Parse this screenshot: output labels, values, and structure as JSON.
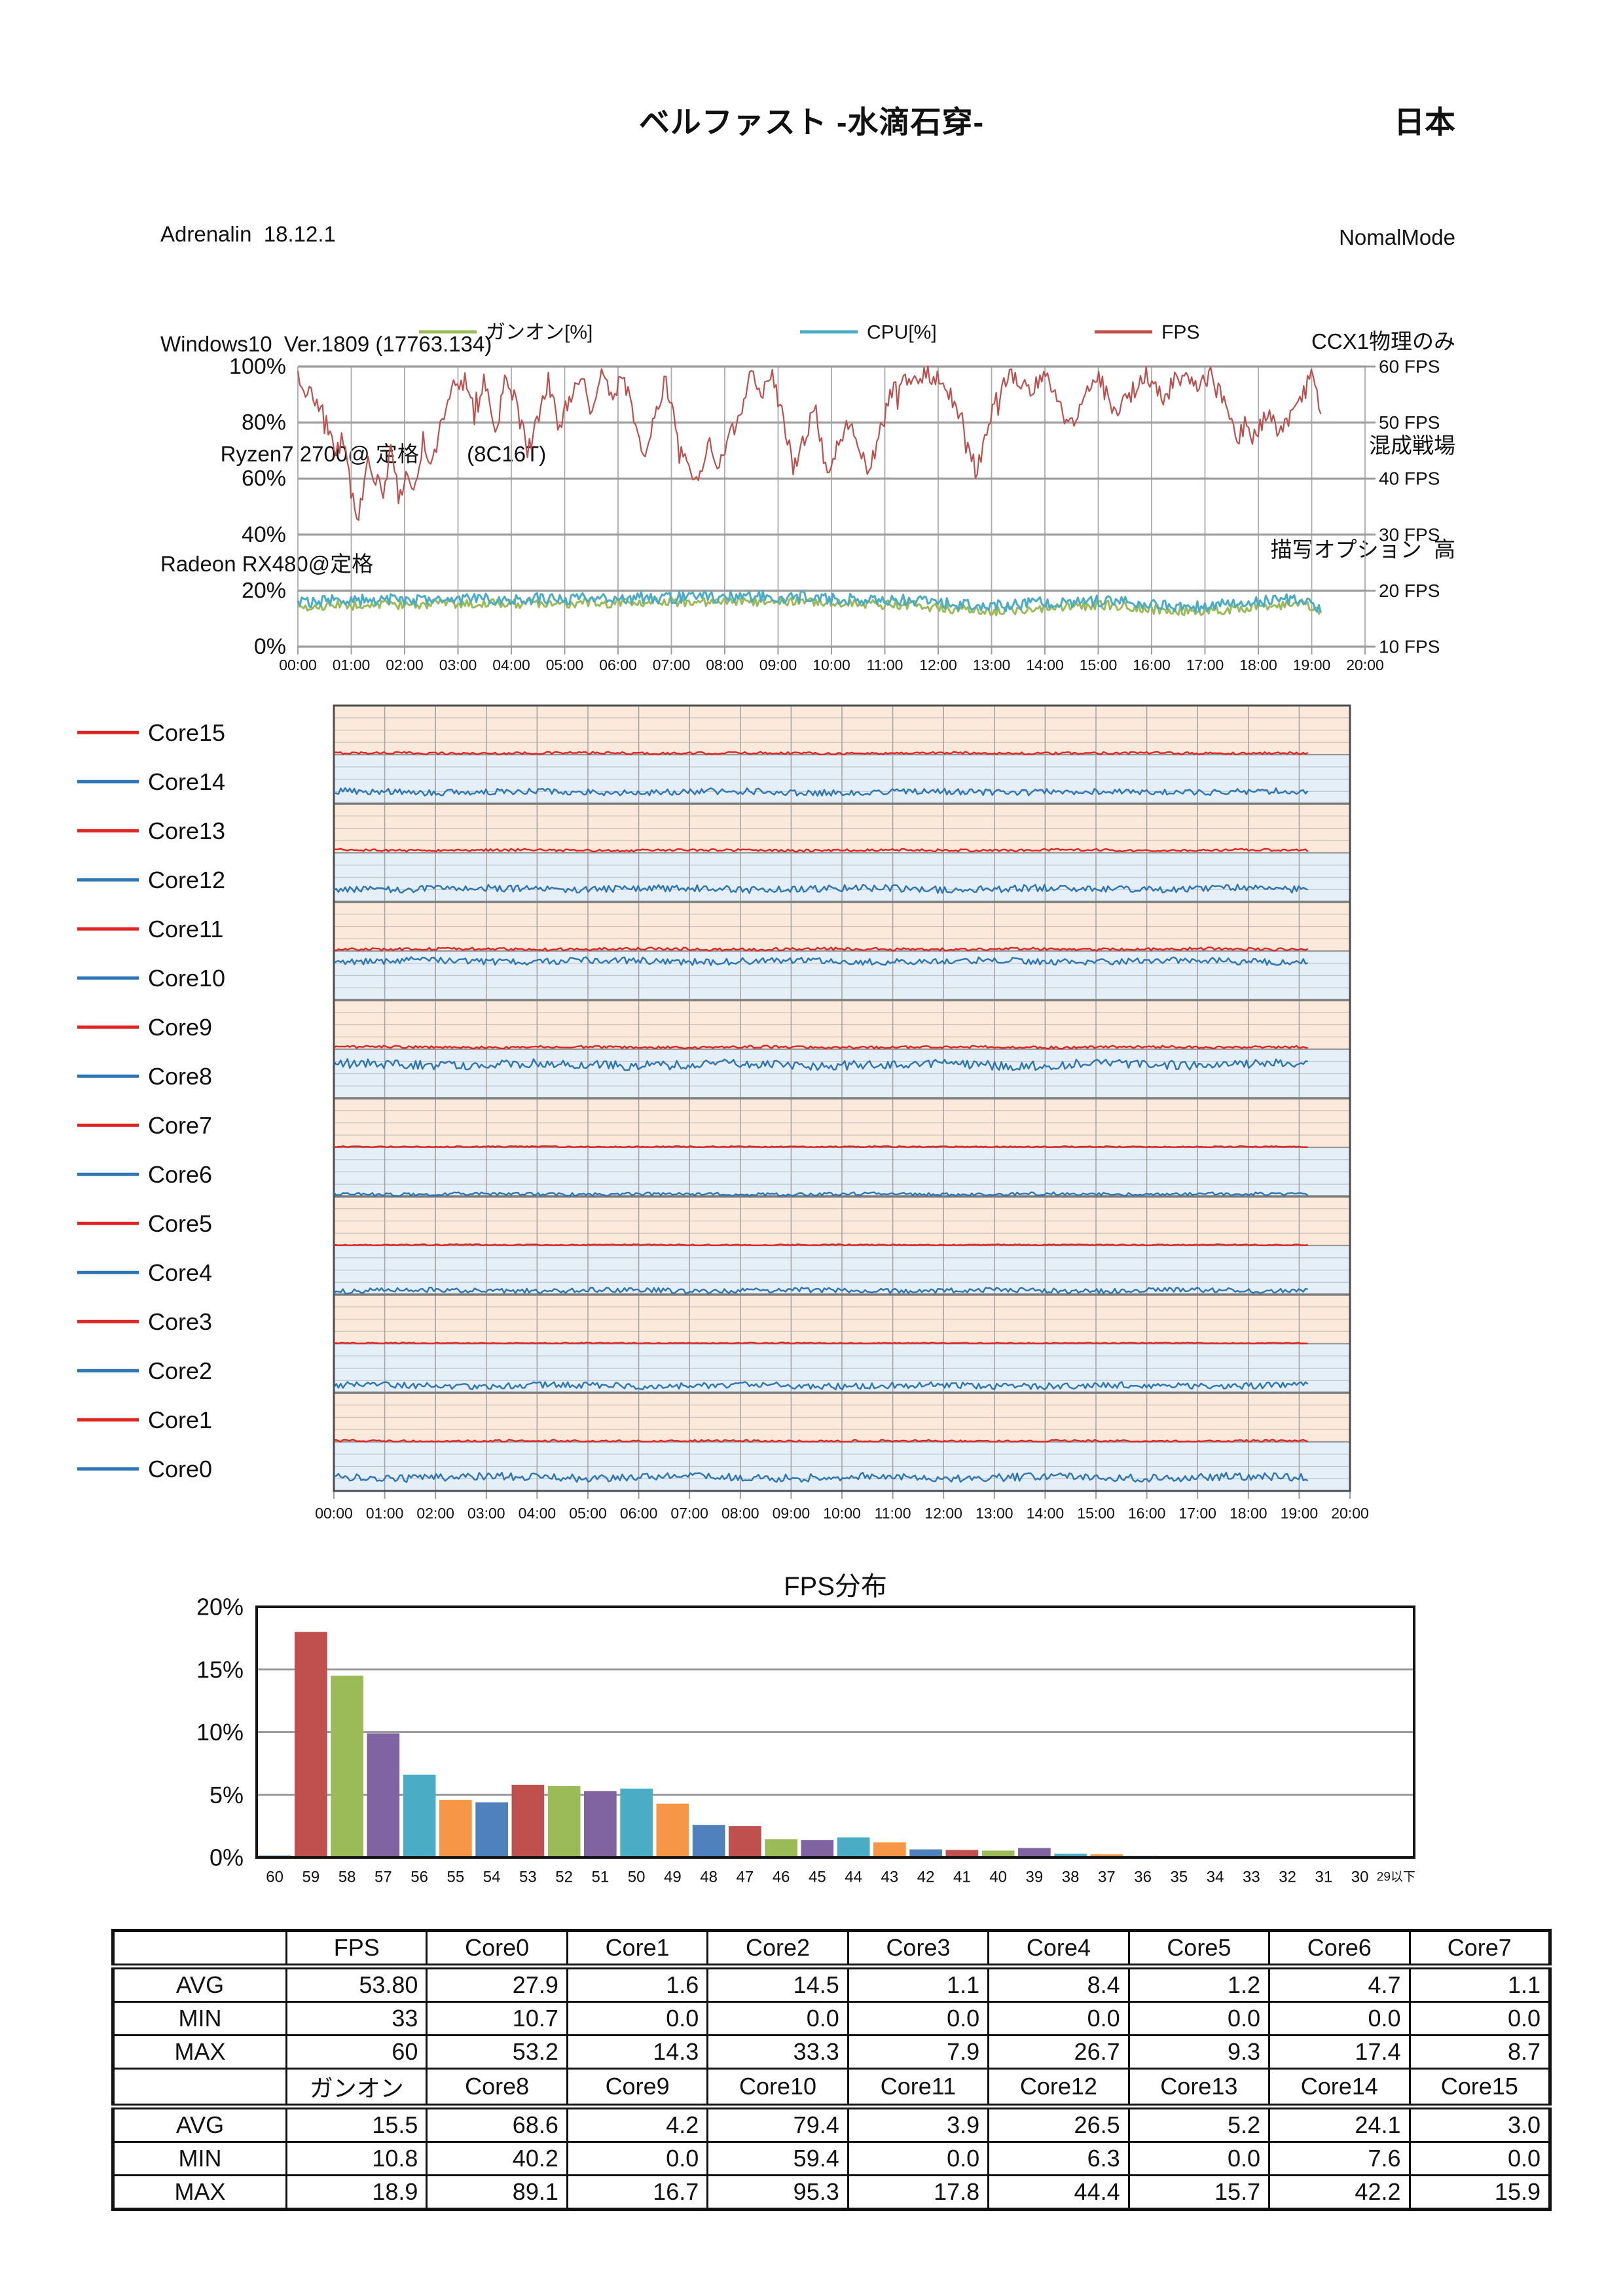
{
  "header": {
    "title": "ベルファスト -水滴石穿-",
    "region": "日本",
    "info_left": [
      "Adrenalin  18.12.1",
      "Windows10  Ver.1809 (17763.134)",
      "          Ryzen7 2700@ 定格        (8C16T)",
      "Radeon RX480@定格"
    ],
    "info_right": [
      "NomalMode",
      "CCX1物理のみ",
      "混成戦場",
      "描写オプション  高"
    ]
  },
  "chart_data": [
    {
      "type": "line",
      "name": "usage-and-fps-over-time",
      "legend": [
        {
          "label": "ガンオン[%]",
          "color": "#9BBB59"
        },
        {
          "label": "CPU[%]",
          "color": "#4BACC6"
        },
        {
          "label": "FPS",
          "color": "#C0504D"
        }
      ],
      "x_ticks": [
        "00:00",
        "01:00",
        "02:00",
        "03:00",
        "04:00",
        "05:00",
        "06:00",
        "07:00",
        "08:00",
        "09:00",
        "10:00",
        "11:00",
        "12:00",
        "13:00",
        "14:00",
        "15:00",
        "16:00",
        "17:00",
        "18:00",
        "19:00",
        "20:00"
      ],
      "y_left": {
        "ticks": [
          "100%",
          "80%",
          "60%",
          "40%",
          "20%",
          "0%"
        ],
        "min": 0,
        "max": 100
      },
      "y_right": {
        "ticks": [
          "60 FPS",
          "50 FPS",
          "40 FPS",
          "30 FPS",
          "20 FPS",
          "10 FPS"
        ],
        "min": 10,
        "max": 60
      },
      "x_range_hours": [
        0,
        20
      ],
      "data_end_hour": 19.17,
      "grid": true,
      "series": [
        {
          "name": "ガンオン[%]",
          "color": "#9BBB59",
          "avg": 15.5,
          "min": 10.8,
          "max": 18.9,
          "noise": 3.4,
          "offset": -1.7
        },
        {
          "name": "CPU[%]",
          "color": "#4BACC6",
          "avg": 17.0,
          "noise": 4.2,
          "offset": 0,
          "envelope": [
            [
              0,
              16
            ],
            [
              1,
              16.5
            ],
            [
              3,
              17
            ],
            [
              5,
              17.2
            ],
            [
              7,
              17.5
            ],
            [
              9,
              17.8
            ],
            [
              10.5,
              17
            ],
            [
              11.5,
              16.5
            ],
            [
              12.3,
              15
            ],
            [
              13.2,
              14.5
            ],
            [
              14.2,
              16
            ],
            [
              15.2,
              16.5
            ],
            [
              16,
              15
            ],
            [
              16.8,
              14.5
            ],
            [
              17.5,
              15
            ],
            [
              18.2,
              16.5
            ],
            [
              18.8,
              17
            ],
            [
              19,
              16
            ],
            [
              19.17,
              13.5
            ]
          ]
        },
        {
          "name": "FPS",
          "color": "#C0504D",
          "avg": 53.8,
          "min": 33,
          "max": 60,
          "noise": 7,
          "envelope_pct": [
            [
              0,
              96
            ],
            [
              0.25,
              90
            ],
            [
              0.5,
              82
            ],
            [
              0.7,
              68
            ],
            [
              0.85,
              75
            ],
            [
              1,
              55
            ],
            [
              1.15,
              46
            ],
            [
              1.3,
              68
            ],
            [
              1.45,
              60
            ],
            [
              1.6,
              55
            ],
            [
              1.75,
              72
            ],
            [
              1.9,
              52
            ],
            [
              2.05,
              62
            ],
            [
              2.2,
              55
            ],
            [
              2.35,
              75
            ],
            [
              2.5,
              62
            ],
            [
              2.7,
              80
            ],
            [
              2.9,
              92
            ],
            [
              3.1,
              97
            ],
            [
              3.3,
              85
            ],
            [
              3.5,
              96
            ],
            [
              3.7,
              75
            ],
            [
              3.9,
              96
            ],
            [
              4.1,
              88
            ],
            [
              4.3,
              70
            ],
            [
              4.5,
              80
            ],
            [
              4.7,
              95
            ],
            [
              4.9,
              78
            ],
            [
              5.1,
              90
            ],
            [
              5.3,
              97
            ],
            [
              5.5,
              85
            ],
            [
              5.7,
              97
            ],
            [
              5.9,
              90
            ],
            [
              6.1,
              97
            ],
            [
              6.3,
              80
            ],
            [
              6.5,
              68
            ],
            [
              6.7,
              85
            ],
            [
              6.9,
              95
            ],
            [
              7.1,
              78
            ],
            [
              7.3,
              65
            ],
            [
              7.5,
              58
            ],
            [
              7.7,
              72
            ],
            [
              7.9,
              65
            ],
            [
              8.1,
              75
            ],
            [
              8.3,
              85
            ],
            [
              8.5,
              97
            ],
            [
              8.7,
              90
            ],
            [
              8.9,
              97
            ],
            [
              9.1,
              80
            ],
            [
              9.3,
              63
            ],
            [
              9.5,
              75
            ],
            [
              9.7,
              85
            ],
            [
              9.9,
              62
            ],
            [
              10.1,
              70
            ],
            [
              10.3,
              80
            ],
            [
              10.5,
              72
            ],
            [
              10.7,
              62
            ],
            [
              10.9,
              75
            ],
            [
              11.1,
              90
            ],
            [
              11.3,
              97
            ],
            [
              11.6,
              96
            ],
            [
              11.9,
              97
            ],
            [
              12.2,
              90
            ],
            [
              12.5,
              80
            ],
            [
              12.7,
              62
            ],
            [
              12.9,
              75
            ],
            [
              13.1,
              90
            ],
            [
              13.4,
              97
            ],
            [
              13.7,
              92
            ],
            [
              14,
              97
            ],
            [
              14.3,
              85
            ],
            [
              14.5,
              78
            ],
            [
              14.7,
              88
            ],
            [
              15,
              97
            ],
            [
              15.3,
              83
            ],
            [
              15.6,
              90
            ],
            [
              15.9,
              97
            ],
            [
              16.2,
              88
            ],
            [
              16.5,
              97
            ],
            [
              16.8,
              92
            ],
            [
              17.1,
              97
            ],
            [
              17.4,
              85
            ],
            [
              17.6,
              73
            ],
            [
              17.8,
              82
            ],
            [
              18,
              78
            ],
            [
              18.2,
              85
            ],
            [
              18.4,
              75
            ],
            [
              18.6,
              82
            ],
            [
              18.8,
              88
            ],
            [
              19,
              97
            ],
            [
              19.1,
              90
            ],
            [
              19.17,
              83
            ]
          ]
        }
      ]
    },
    {
      "type": "line-multiband",
      "name": "per-core-usage",
      "x_ticks": [
        "00:00",
        "01:00",
        "02:00",
        "03:00",
        "04:00",
        "05:00",
        "06:00",
        "07:00",
        "08:00",
        "09:00",
        "10:00",
        "11:00",
        "12:00",
        "13:00",
        "14:00",
        "15:00",
        "16:00",
        "17:00",
        "18:00",
        "19:00",
        "20:00"
      ],
      "x_range_hours": [
        0,
        20
      ],
      "data_end_hour": 19.17,
      "band_scale_pct": [
        0,
        100
      ],
      "colors": {
        "red_line": "#E02424",
        "blue_line": "#2E75B6",
        "red_bg": "#FBEADC",
        "blue_bg": "#E4EFF8"
      },
      "cores": [
        {
          "name": "Core15",
          "type": "red",
          "avg": 3.0,
          "min": 0.0,
          "max": 15.9
        },
        {
          "name": "Core14",
          "type": "blue",
          "avg": 24.1,
          "min": 7.6,
          "max": 42.2
        },
        {
          "name": "Core13",
          "type": "red",
          "avg": 5.2,
          "min": 0.0,
          "max": 15.7
        },
        {
          "name": "Core12",
          "type": "blue",
          "avg": 26.5,
          "min": 6.3,
          "max": 44.4
        },
        {
          "name": "Core11",
          "type": "red",
          "avg": 3.9,
          "min": 0.0,
          "max": 17.8
        },
        {
          "name": "Core10",
          "type": "blue",
          "avg": 79.4,
          "min": 59.4,
          "max": 95.3
        },
        {
          "name": "Core9",
          "type": "red",
          "avg": 4.2,
          "min": 0.0,
          "max": 16.7
        },
        {
          "name": "Core8",
          "type": "blue",
          "avg": 68.6,
          "min": 40.2,
          "max": 89.1
        },
        {
          "name": "Core7",
          "type": "red",
          "avg": 1.1,
          "min": 0.0,
          "max": 8.7
        },
        {
          "name": "Core6",
          "type": "blue",
          "avg": 4.7,
          "min": 0.0,
          "max": 17.4
        },
        {
          "name": "Core5",
          "type": "red",
          "avg": 1.2,
          "min": 0.0,
          "max": 9.3
        },
        {
          "name": "Core4",
          "type": "blue",
          "avg": 8.4,
          "min": 0.0,
          "max": 26.7
        },
        {
          "name": "Core3",
          "type": "red",
          "avg": 1.1,
          "min": 0.0,
          "max": 7.9
        },
        {
          "name": "Core2",
          "type": "blue",
          "avg": 14.5,
          "min": 0.0,
          "max": 33.3
        },
        {
          "name": "Core1",
          "type": "red",
          "avg": 1.6,
          "min": 0.0,
          "max": 14.3
        },
        {
          "name": "Core0",
          "type": "blue",
          "avg": 27.9,
          "min": 10.7,
          "max": 53.2
        }
      ]
    },
    {
      "type": "bar",
      "name": "fps-distribution",
      "title": "FPS分布",
      "categories": [
        "60",
        "59",
        "58",
        "57",
        "56",
        "55",
        "54",
        "53",
        "52",
        "51",
        "50",
        "49",
        "48",
        "47",
        "46",
        "45",
        "44",
        "43",
        "42",
        "41",
        "40",
        "39",
        "38",
        "37",
        "36",
        "35",
        "34",
        "33",
        "32",
        "31",
        "30",
        "29以下"
      ],
      "values": [
        0.15,
        18.0,
        14.5,
        9.9,
        6.6,
        4.6,
        4.4,
        5.8,
        5.7,
        5.3,
        5.5,
        4.3,
        2.6,
        2.5,
        1.45,
        1.4,
        1.6,
        1.2,
        0.65,
        0.6,
        0.55,
        0.75,
        0.3,
        0.25,
        0.12,
        0.1,
        0.06,
        0.05,
        0.08,
        0.04,
        0.03,
        0.02
      ],
      "palette": [
        "#4F81BD",
        "#C0504D",
        "#9BBB59",
        "#8064A2",
        "#4BACC6",
        "#F79646"
      ],
      "y_ticks": [
        "20%",
        "15%",
        "10%",
        "5%",
        "0%"
      ],
      "ylim": [
        0,
        20
      ],
      "legend_position": "none"
    }
  ],
  "table": {
    "header1": [
      "",
      "FPS",
      "Core0",
      "Core1",
      "Core2",
      "Core3",
      "Core4",
      "Core5",
      "Core6",
      "Core7"
    ],
    "rows1": [
      [
        "AVG",
        "53.80",
        "27.9",
        "1.6",
        "14.5",
        "1.1",
        "8.4",
        "1.2",
        "4.7",
        "1.1"
      ],
      [
        "MIN",
        "33",
        "10.7",
        "0.0",
        "0.0",
        "0.0",
        "0.0",
        "0.0",
        "0.0",
        "0.0"
      ],
      [
        "MAX",
        "60",
        "53.2",
        "14.3",
        "33.3",
        "7.9",
        "26.7",
        "9.3",
        "17.4",
        "8.7"
      ]
    ],
    "header2": [
      "",
      "ガンオン",
      "Core8",
      "Core9",
      "Core10",
      "Core11",
      "Core12",
      "Core13",
      "Core14",
      "Core15"
    ],
    "rows2": [
      [
        "AVG",
        "15.5",
        "68.6",
        "4.2",
        "79.4",
        "3.9",
        "26.5",
        "5.2",
        "24.1",
        "3.0"
      ],
      [
        "MIN",
        "10.8",
        "40.2",
        "0.0",
        "59.4",
        "0.0",
        "6.3",
        "0.0",
        "7.6",
        "0.0"
      ],
      [
        "MAX",
        "18.9",
        "89.1",
        "16.7",
        "95.3",
        "17.8",
        "44.4",
        "15.7",
        "42.2",
        "15.9"
      ]
    ]
  }
}
